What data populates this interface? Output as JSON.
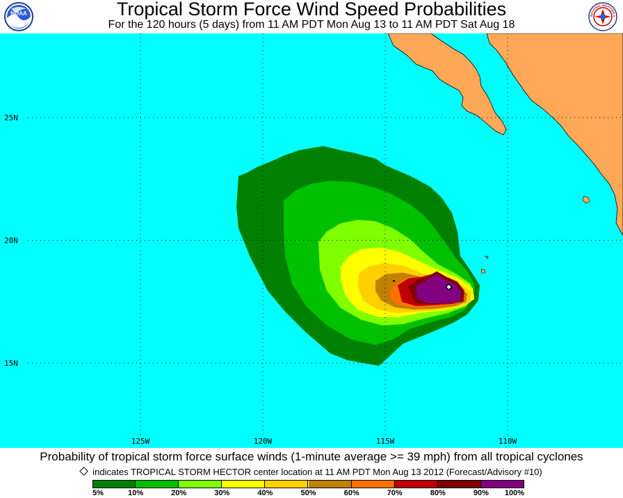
{
  "title": "Tropical Storm Force Wind Speed Probabilities",
  "subtitle": "For the 120 hours (5 days) from 11 AM PDT Mon Aug 13 to 11 AM PDT Sat Aug 18",
  "logos": {
    "left": "noaa-logo",
    "left_text": "NOAA",
    "right": "national-weather-service-logo",
    "right_text": "NATIONAL WEATHER SERVICE"
  },
  "map": {
    "ocean_color": "#00ffff",
    "land_color": "#ffa858",
    "lat_labels": [
      {
        "text": "25N",
        "lat": 25
      },
      {
        "text": "20N",
        "lat": 20
      },
      {
        "text": "15N",
        "lat": 15
      }
    ],
    "lon_labels": [
      {
        "text": "125W",
        "lon": -125
      },
      {
        "text": "120W",
        "lon": -120
      },
      {
        "text": "115W",
        "lon": -115
      },
      {
        "text": "110W",
        "lon": -110
      }
    ],
    "storm_center": {
      "lat": 18.1,
      "lon": -112.4,
      "symbol": "diamond-icon"
    }
  },
  "footer": {
    "description": "Probability of tropical storm force surface winds (1-minute average >= 39 mph) from all tropical cyclones",
    "note": "indicates TROPICAL STORM HECTOR center location at 11 AM PDT Mon Aug 13 2012 (Forecast/Advisory #10)"
  },
  "scale": {
    "colors": [
      "#008000",
      "#00c000",
      "#80ff00",
      "#ffff00",
      "#ffd000",
      "#c08000",
      "#ff7000",
      "#c00000",
      "#800000",
      "#800080"
    ],
    "labels": [
      "5%",
      "10%",
      "20%",
      "30%",
      "40%",
      "50%",
      "60%",
      "70%",
      "80%",
      "90%",
      "100%"
    ]
  }
}
